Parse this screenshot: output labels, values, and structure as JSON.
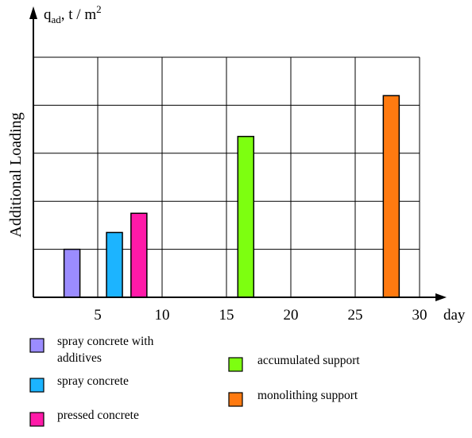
{
  "chart_data": {
    "type": "bar",
    "title": "",
    "ylabel": "Additional Loading",
    "y_unit": {
      "symbol": "q",
      "subscript": "ad",
      "unit": ", t / m",
      "superscript": "2"
    },
    "xlabel": "day",
    "xlim": [
      0,
      30
    ],
    "ylim": [
      0,
      5
    ],
    "x_ticks": [
      5,
      10,
      15,
      20,
      25,
      30
    ],
    "y_ticks": [
      1,
      2,
      3,
      4,
      5
    ],
    "y_tick_labels_shown": false,
    "grid": true,
    "series": [
      {
        "name": "spray concrete with additives",
        "x": 3.0,
        "value": 1.0,
        "color": "#9b8cff"
      },
      {
        "name": "spray concrete",
        "x": 6.3,
        "value": 1.35,
        "color": "#1cb4ff"
      },
      {
        "name": "pressed concrete",
        "x": 8.2,
        "value": 1.75,
        "color": "#ff1aa8"
      },
      {
        "name": "accumulated support",
        "x": 16.5,
        "value": 3.35,
        "color": "#7dff10"
      },
      {
        "name": "monolithing support",
        "x": 27.8,
        "value": 4.2,
        "color": "#ff7a10"
      }
    ],
    "legend": [
      {
        "lines": [
          "spray concrete with",
          "additives"
        ],
        "color": "#9b8cff"
      },
      {
        "lines": [
          "spray concrete"
        ],
        "color": "#1cb4ff"
      },
      {
        "lines": [
          "pressed concrete"
        ],
        "color": "#ff1aa8"
      },
      {
        "lines": [
          "accumulated support"
        ],
        "color": "#7dff10"
      },
      {
        "lines": [
          "monolithing support"
        ],
        "color": "#ff7a10"
      }
    ]
  }
}
